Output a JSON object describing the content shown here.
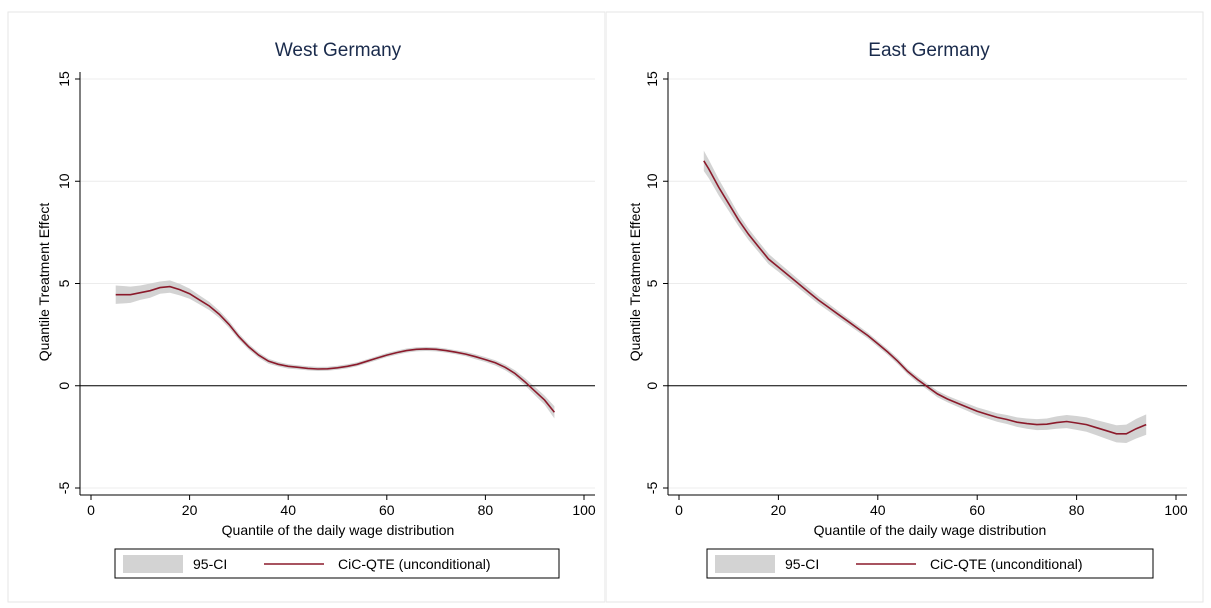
{
  "chart_data": [
    {
      "type": "line",
      "title": "West Germany",
      "xlabel": "Quantile of the daily wage distribution",
      "ylabel": "Quantile Treatment Effect",
      "xlim": [
        0,
        100
      ],
      "ylim": [
        -5,
        15
      ],
      "xticks": [
        "0",
        "20",
        "40",
        "60",
        "80",
        "100"
      ],
      "yticks": [
        "-5",
        "0",
        "5",
        "10",
        "15"
      ],
      "grid": true,
      "reference_line_y": 0,
      "legend": {
        "placement": "bottom",
        "entries": [
          "95-CI",
          "CiC-QTE (unconditional)"
        ]
      },
      "series": [
        {
          "name": "CiC-QTE (unconditional)",
          "color": "#8b1a2b",
          "x": [
            5,
            8,
            10,
            12,
            14,
            16,
            18,
            20,
            22,
            24,
            26,
            28,
            30,
            32,
            34,
            36,
            38,
            40,
            42,
            44,
            46,
            48,
            50,
            52,
            54,
            56,
            58,
            60,
            62,
            64,
            66,
            68,
            70,
            72,
            74,
            76,
            78,
            80,
            82,
            84,
            86,
            88,
            90,
            92,
            94
          ],
          "values": [
            4.45,
            4.45,
            4.55,
            4.65,
            4.8,
            4.85,
            4.7,
            4.5,
            4.2,
            3.9,
            3.5,
            3.0,
            2.4,
            1.9,
            1.5,
            1.2,
            1.05,
            0.95,
            0.9,
            0.85,
            0.82,
            0.83,
            0.88,
            0.95,
            1.05,
            1.2,
            1.35,
            1.5,
            1.62,
            1.72,
            1.78,
            1.8,
            1.78,
            1.72,
            1.64,
            1.55,
            1.42,
            1.28,
            1.12,
            0.9,
            0.6,
            0.2,
            -0.25,
            -0.7,
            -1.3
          ]
        },
        {
          "name": "95-CI",
          "color": "#d3d3d3",
          "x": [
            5,
            8,
            10,
            12,
            14,
            16,
            18,
            20,
            22,
            24,
            26,
            28,
            30,
            32,
            34,
            36,
            38,
            40,
            42,
            44,
            46,
            48,
            50,
            52,
            54,
            56,
            58,
            60,
            62,
            64,
            66,
            68,
            70,
            72,
            74,
            76,
            78,
            80,
            82,
            84,
            86,
            88,
            90,
            92,
            94
          ],
          "upper": [
            4.9,
            4.85,
            4.9,
            5.0,
            5.1,
            5.15,
            4.98,
            4.75,
            4.42,
            4.1,
            3.68,
            3.17,
            2.55,
            2.04,
            1.63,
            1.32,
            1.16,
            1.06,
            1.0,
            0.95,
            0.92,
            0.93,
            0.98,
            1.05,
            1.15,
            1.3,
            1.45,
            1.6,
            1.72,
            1.82,
            1.88,
            1.9,
            1.88,
            1.82,
            1.74,
            1.66,
            1.54,
            1.4,
            1.25,
            1.04,
            0.76,
            0.38,
            -0.05,
            -0.48,
            -1.0
          ],
          "lower": [
            4.0,
            4.05,
            4.2,
            4.3,
            4.5,
            4.55,
            4.42,
            4.25,
            3.98,
            3.7,
            3.32,
            2.83,
            2.25,
            1.76,
            1.37,
            1.08,
            0.94,
            0.84,
            0.8,
            0.75,
            0.72,
            0.73,
            0.78,
            0.85,
            0.95,
            1.1,
            1.25,
            1.4,
            1.52,
            1.62,
            1.68,
            1.7,
            1.68,
            1.62,
            1.54,
            1.44,
            1.3,
            1.16,
            0.99,
            0.76,
            0.44,
            0.02,
            -0.45,
            -0.92,
            -1.6
          ]
        }
      ]
    },
    {
      "type": "line",
      "title": "East Germany",
      "xlabel": "Quantile of the daily wage distribution",
      "ylabel": "Quantile Treatment Effect",
      "xlim": [
        0,
        100
      ],
      "ylim": [
        -5,
        15
      ],
      "xticks": [
        "0",
        "20",
        "40",
        "60",
        "80",
        "100"
      ],
      "yticks": [
        "-5",
        "0",
        "5",
        "10",
        "15"
      ],
      "grid": true,
      "reference_line_y": 0,
      "legend": {
        "placement": "bottom",
        "entries": [
          "95-CI",
          "CiC-QTE (unconditional)"
        ]
      },
      "series": [
        {
          "name": "CiC-QTE (unconditional)",
          "color": "#8b1a2b",
          "x": [
            5,
            6,
            8,
            10,
            12,
            14,
            16,
            18,
            20,
            22,
            24,
            26,
            28,
            30,
            32,
            34,
            36,
            38,
            40,
            42,
            44,
            46,
            48,
            50,
            52,
            54,
            56,
            58,
            60,
            62,
            64,
            66,
            68,
            70,
            72,
            74,
            76,
            78,
            80,
            82,
            84,
            86,
            88,
            90,
            92,
            94
          ],
          "values": [
            11.0,
            10.6,
            9.7,
            8.9,
            8.1,
            7.4,
            6.8,
            6.2,
            5.8,
            5.4,
            5.0,
            4.6,
            4.2,
            3.85,
            3.5,
            3.15,
            2.8,
            2.45,
            2.05,
            1.65,
            1.2,
            0.7,
            0.3,
            -0.05,
            -0.4,
            -0.65,
            -0.85,
            -1.05,
            -1.25,
            -1.4,
            -1.55,
            -1.65,
            -1.78,
            -1.85,
            -1.9,
            -1.88,
            -1.8,
            -1.75,
            -1.82,
            -1.9,
            -2.05,
            -2.2,
            -2.35,
            -2.35,
            -2.1,
            -1.9
          ]
        },
        {
          "name": "95-CI",
          "color": "#d3d3d3",
          "x": [
            5,
            6,
            8,
            10,
            12,
            14,
            16,
            18,
            20,
            22,
            24,
            26,
            28,
            30,
            32,
            34,
            36,
            38,
            40,
            42,
            44,
            46,
            48,
            50,
            52,
            54,
            56,
            58,
            60,
            62,
            64,
            66,
            68,
            70,
            72,
            74,
            76,
            78,
            80,
            82,
            84,
            86,
            88,
            90,
            92,
            94
          ],
          "upper": [
            11.5,
            11.05,
            10.1,
            9.25,
            8.4,
            7.68,
            7.06,
            6.45,
            6.03,
            5.62,
            5.21,
            4.8,
            4.39,
            4.03,
            3.67,
            3.31,
            2.95,
            2.59,
            2.19,
            1.79,
            1.34,
            0.84,
            0.45,
            0.1,
            -0.24,
            -0.49,
            -0.68,
            -0.87,
            -1.06,
            -1.2,
            -1.34,
            -1.43,
            -1.55,
            -1.6,
            -1.63,
            -1.6,
            -1.5,
            -1.43,
            -1.48,
            -1.55,
            -1.68,
            -1.8,
            -1.93,
            -1.9,
            -1.62,
            -1.4
          ],
          "lower": [
            10.5,
            10.15,
            9.3,
            8.55,
            7.8,
            7.12,
            6.54,
            5.95,
            5.57,
            5.18,
            4.79,
            4.4,
            4.01,
            3.67,
            3.33,
            2.99,
            2.65,
            2.31,
            1.91,
            1.51,
            1.06,
            0.56,
            0.15,
            -0.2,
            -0.56,
            -0.81,
            -1.02,
            -1.23,
            -1.44,
            -1.6,
            -1.76,
            -1.87,
            -2.01,
            -2.1,
            -2.17,
            -2.16,
            -2.1,
            -2.07,
            -2.16,
            -2.25,
            -2.42,
            -2.6,
            -2.77,
            -2.8,
            -2.58,
            -2.4
          ]
        }
      ]
    }
  ]
}
